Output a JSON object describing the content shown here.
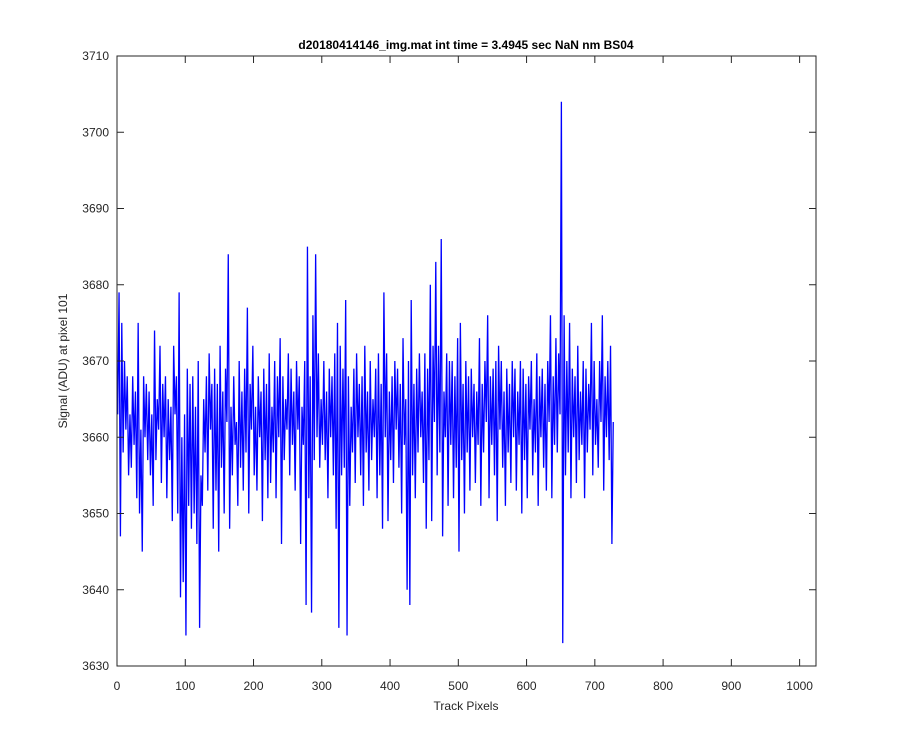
{
  "chart_data": {
    "type": "line",
    "title": "d20180414146_img.mat int time = 3.4945 sec  NaN nm BS04",
    "xlabel": "Track Pixels",
    "ylabel": "Signal (ADU) at pixel 101",
    "xlim": [
      0,
      1024
    ],
    "ylim": [
      3630,
      3710
    ],
    "xticks": [
      0,
      100,
      200,
      300,
      400,
      500,
      600,
      700,
      800,
      900,
      1000
    ],
    "yticks": [
      3630,
      3640,
      3650,
      3660,
      3670,
      3680,
      3690,
      3700,
      3710
    ],
    "grid": false,
    "legend": "none",
    "line_color": "#0000ff",
    "series": [
      {
        "x_start": 1,
        "x_step": 2,
        "values": [
          3663,
          3679,
          3647,
          3675,
          3658,
          3670,
          3661,
          3668,
          3655,
          3663,
          3656,
          3668,
          3659,
          3666,
          3652,
          3675,
          3650,
          3661,
          3645,
          3668,
          3660,
          3667,
          3657,
          3666,
          3655,
          3663,
          3651,
          3674,
          3657,
          3665,
          3661,
          3672,
          3654,
          3667,
          3660,
          3668,
          3652,
          3665,
          3657,
          3664,
          3649,
          3672,
          3663,
          3668,
          3650,
          3679,
          3639,
          3660,
          3641,
          3663,
          3634,
          3669,
          3651,
          3667,
          3648,
          3668,
          3650,
          3664,
          3646,
          3670,
          3635,
          3655,
          3651,
          3665,
          3658,
          3668,
          3653,
          3671,
          3661,
          3667,
          3648,
          3669,
          3653,
          3667,
          3645,
          3672,
          3656,
          3666,
          3650,
          3669,
          3662,
          3684,
          3648,
          3664,
          3655,
          3668,
          3659,
          3662,
          3651,
          3670,
          3656,
          3666,
          3653,
          3669,
          3658,
          3677,
          3650,
          3667,
          3661,
          3672,
          3655,
          3664,
          3653,
          3668,
          3660,
          3666,
          3649,
          3669,
          3657,
          3667,
          3652,
          3671,
          3654,
          3664,
          3658,
          3670,
          3652,
          3668,
          3660,
          3673,
          3646,
          3668,
          3657,
          3665,
          3661,
          3671,
          3655,
          3669,
          3659,
          3666,
          3653,
          3670,
          3661,
          3668,
          3646,
          3664,
          3659,
          3670,
          3638,
          3685,
          3652,
          3668,
          3637,
          3676,
          3657,
          3684,
          3660,
          3671,
          3656,
          3665,
          3659,
          3670,
          3657,
          3666,
          3652,
          3669,
          3660,
          3668,
          3655,
          3671,
          3648,
          3675,
          3635,
          3672,
          3655,
          3669,
          3656,
          3678,
          3634,
          3668,
          3651,
          3664,
          3658,
          3669,
          3654,
          3671,
          3660,
          3667,
          3655,
          3668,
          3651,
          3672,
          3658,
          3666,
          3653,
          3670,
          3657,
          3665,
          3660,
          3669,
          3652,
          3671,
          3655,
          3667,
          3648,
          3679,
          3660,
          3671,
          3649,
          3666,
          3657,
          3668,
          3654,
          3670,
          3661,
          3669,
          3656,
          3667,
          3650,
          3673,
          3659,
          3665,
          3640,
          3670,
          3638,
          3678,
          3655,
          3667,
          3652,
          3669,
          3658,
          3671,
          3660,
          3666,
          3654,
          3671,
          3648,
          3669,
          3657,
          3680,
          3649,
          3672,
          3662,
          3683,
          3655,
          3672,
          3658,
          3686,
          3647,
          3666,
          3660,
          3671,
          3651,
          3670,
          3659,
          3670,
          3652,
          3668,
          3656,
          3673,
          3645,
          3675,
          3657,
          3667,
          3650,
          3670,
          3658,
          3668,
          3653,
          3669,
          3660,
          3667,
          3654,
          3666,
          3659,
          3673,
          3651,
          3667,
          3658,
          3670,
          3662,
          3676,
          3652,
          3668,
          3659,
          3669,
          3655,
          3670,
          3649,
          3672,
          3661,
          3670,
          3656,
          3666,
          3651,
          3669,
          3658,
          3667,
          3654,
          3670,
          3660,
          3669,
          3653,
          3666,
          3659,
          3670,
          3650,
          3669,
          3657,
          3667,
          3652,
          3668,
          3661,
          3670,
          3655,
          3665,
          3658,
          3671,
          3651,
          3668,
          3660,
          3669,
          3656,
          3667,
          3653,
          3670,
          3662,
          3676,
          3652,
          3668,
          3659,
          3673,
          3658,
          3671,
          3663,
          3704,
          3633,
          3676,
          3655,
          3670,
          3658,
          3675,
          3652,
          3669,
          3660,
          3668,
          3654,
          3672,
          3657,
          3666,
          3659,
          3670,
          3652,
          3669,
          3658,
          3667,
          3661,
          3675,
          3655,
          3670,
          3659,
          3665,
          3656,
          3670,
          3662,
          3676,
          3653,
          3668,
          3660,
          3670,
          3657,
          3672,
          3646,
          3662
        ]
      }
    ]
  }
}
